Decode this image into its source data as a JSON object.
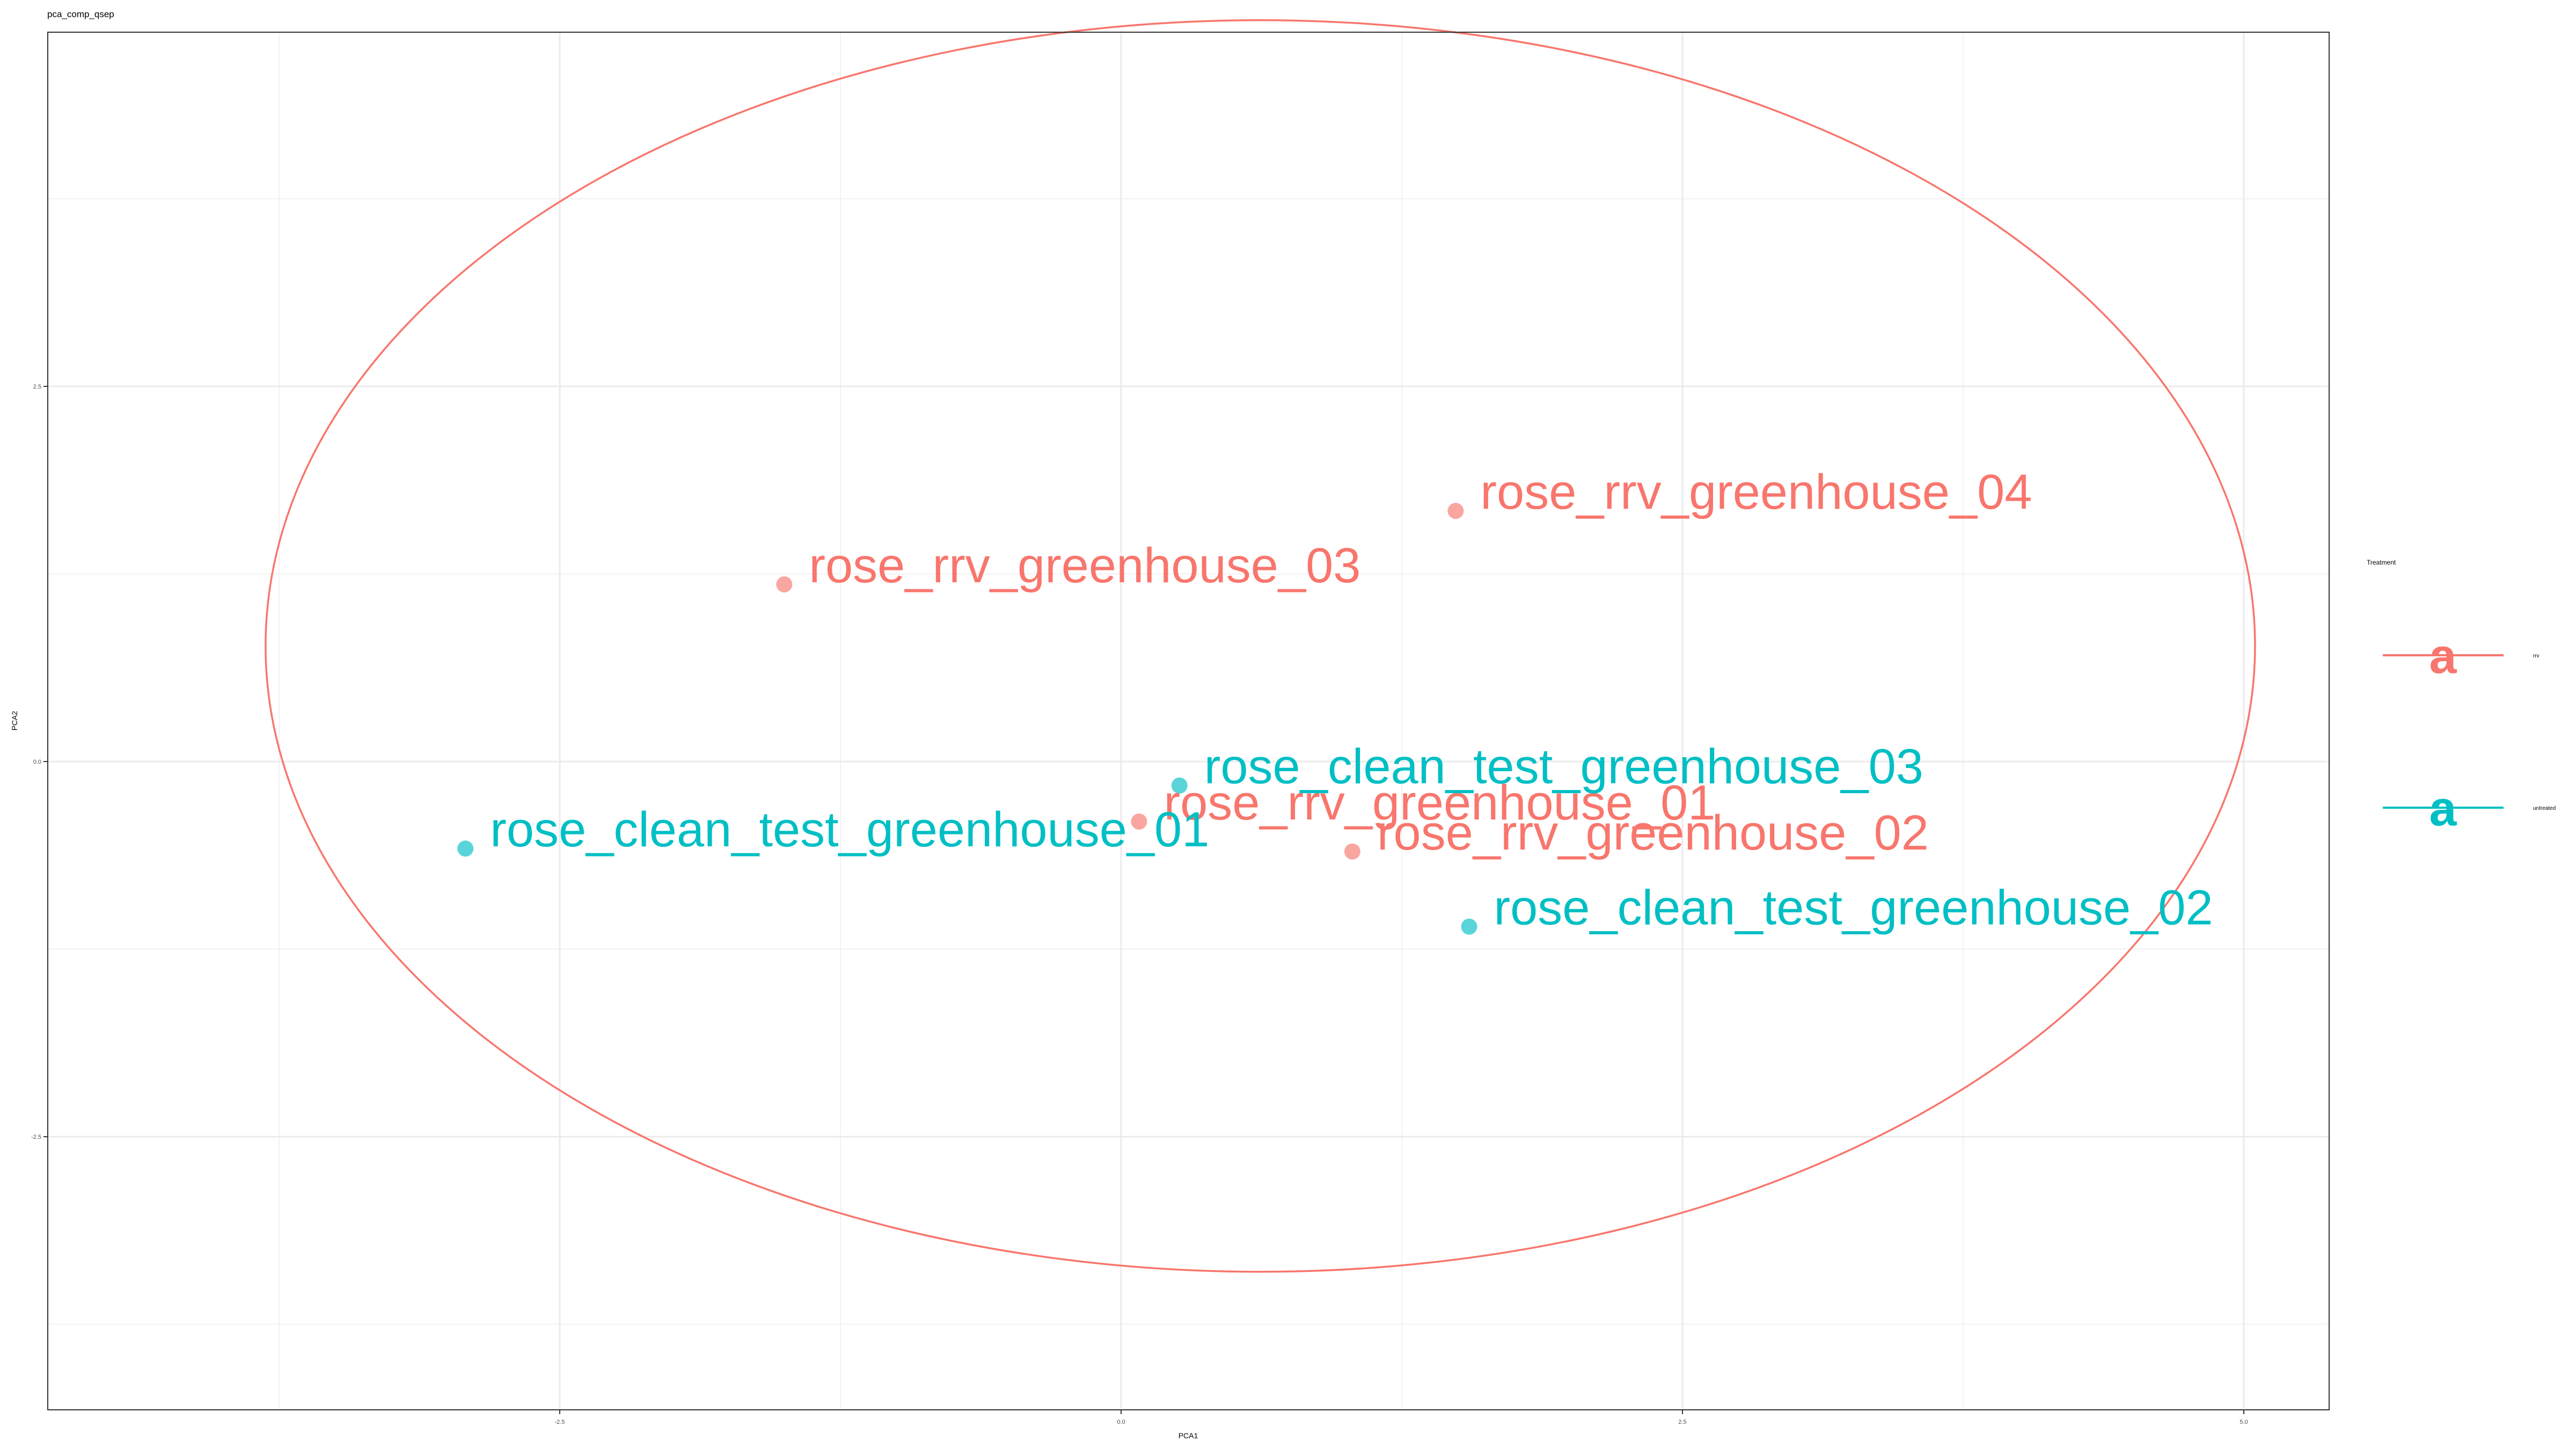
{
  "chart_data": {
    "type": "scatter",
    "title": "pca_comp_qsep",
    "xlabel": "PCA1",
    "ylabel": "PCA2",
    "xlim": [
      -4.78,
      5.38
    ],
    "ylim": [
      -4.32,
      4.86
    ],
    "x_ticks": [
      -2.5,
      0.0,
      2.5,
      5.0
    ],
    "x_tick_labels": [
      "-2.5",
      "0.0",
      "2.5",
      "5.0"
    ],
    "y_ticks": [
      -2.5,
      0.0,
      2.5
    ],
    "y_tick_labels": [
      "-2.5",
      "0.0",
      "2.5"
    ],
    "grid": true,
    "legend": {
      "title": "Treatment",
      "placement": "right",
      "key_text": "a",
      "entries": [
        {
          "name": "rrv",
          "color": "#F8766D"
        },
        {
          "name": "untreated",
          "color": "#00BFC4"
        }
      ]
    },
    "series": [
      {
        "name": "rrv",
        "color": "#F8766D",
        "points": [
          {
            "label": "rose_rrv_greenhouse_01",
            "x": 0.08,
            "y": -0.4
          },
          {
            "label": "rose_rrv_greenhouse_02",
            "x": 1.03,
            "y": -0.6
          },
          {
            "label": "rose_rrv_greenhouse_03",
            "x": -1.5,
            "y": 1.18
          },
          {
            "label": "rose_rrv_greenhouse_04",
            "x": 1.49,
            "y": 1.67
          }
        ]
      },
      {
        "name": "untreated",
        "color": "#00BFC4",
        "points": [
          {
            "label": "rose_clean_test_greenhouse_01",
            "x": -2.92,
            "y": -0.58
          },
          {
            "label": "rose_clean_test_greenhouse_02",
            "x": 1.55,
            "y": -1.1
          },
          {
            "label": "rose_clean_test_greenhouse_03",
            "x": 0.26,
            "y": -0.16
          }
        ]
      }
    ],
    "ellipses": [
      {
        "series": "rrv",
        "color": "#F8766D",
        "center": [
          0.62,
          0.77
        ],
        "semi_x": 4.43,
        "semi_y": 4.17
      }
    ]
  }
}
